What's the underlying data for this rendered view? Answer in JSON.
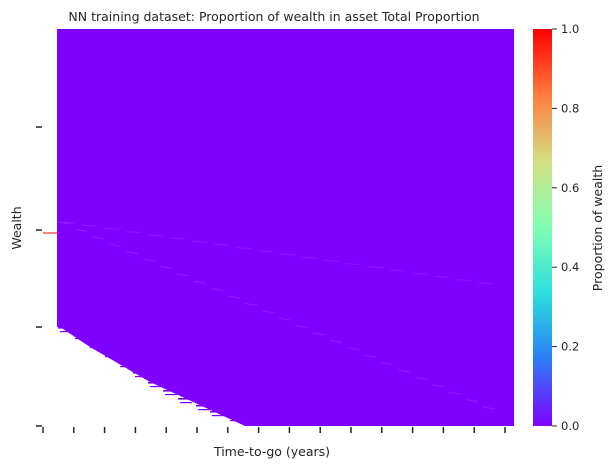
{
  "chart_data": {
    "type": "heatmap",
    "title": "NN training dataset: Proportion of wealth in asset Total Proportion",
    "xlabel": "Time-to-go (years)",
    "ylabel": "Wealth",
    "x_tick_labels": [],
    "y_tick_labels": [],
    "value_range": [
      0,
      1
    ],
    "dominant_value": 0.0,
    "colormap": "rainbow",
    "colormap_stops": [
      "#8000ff",
      "#2c7ef7",
      "#2adddd",
      "#80ffb4",
      "#d4dd80",
      "#ff7e41",
      "#ff0000"
    ],
    "colorbar": {
      "label": "Proportion of wealth",
      "ticks": [
        {
          "value": 0.0,
          "label": "0.0"
        },
        {
          "value": 0.2,
          "label": "0.2"
        },
        {
          "value": 0.4,
          "label": "0.4"
        },
        {
          "value": 0.6,
          "label": "0.6"
        },
        {
          "value": 0.8,
          "label": "0.8"
        },
        {
          "value": 1.0,
          "label": "1.0"
        }
      ]
    },
    "grid": false
  }
}
